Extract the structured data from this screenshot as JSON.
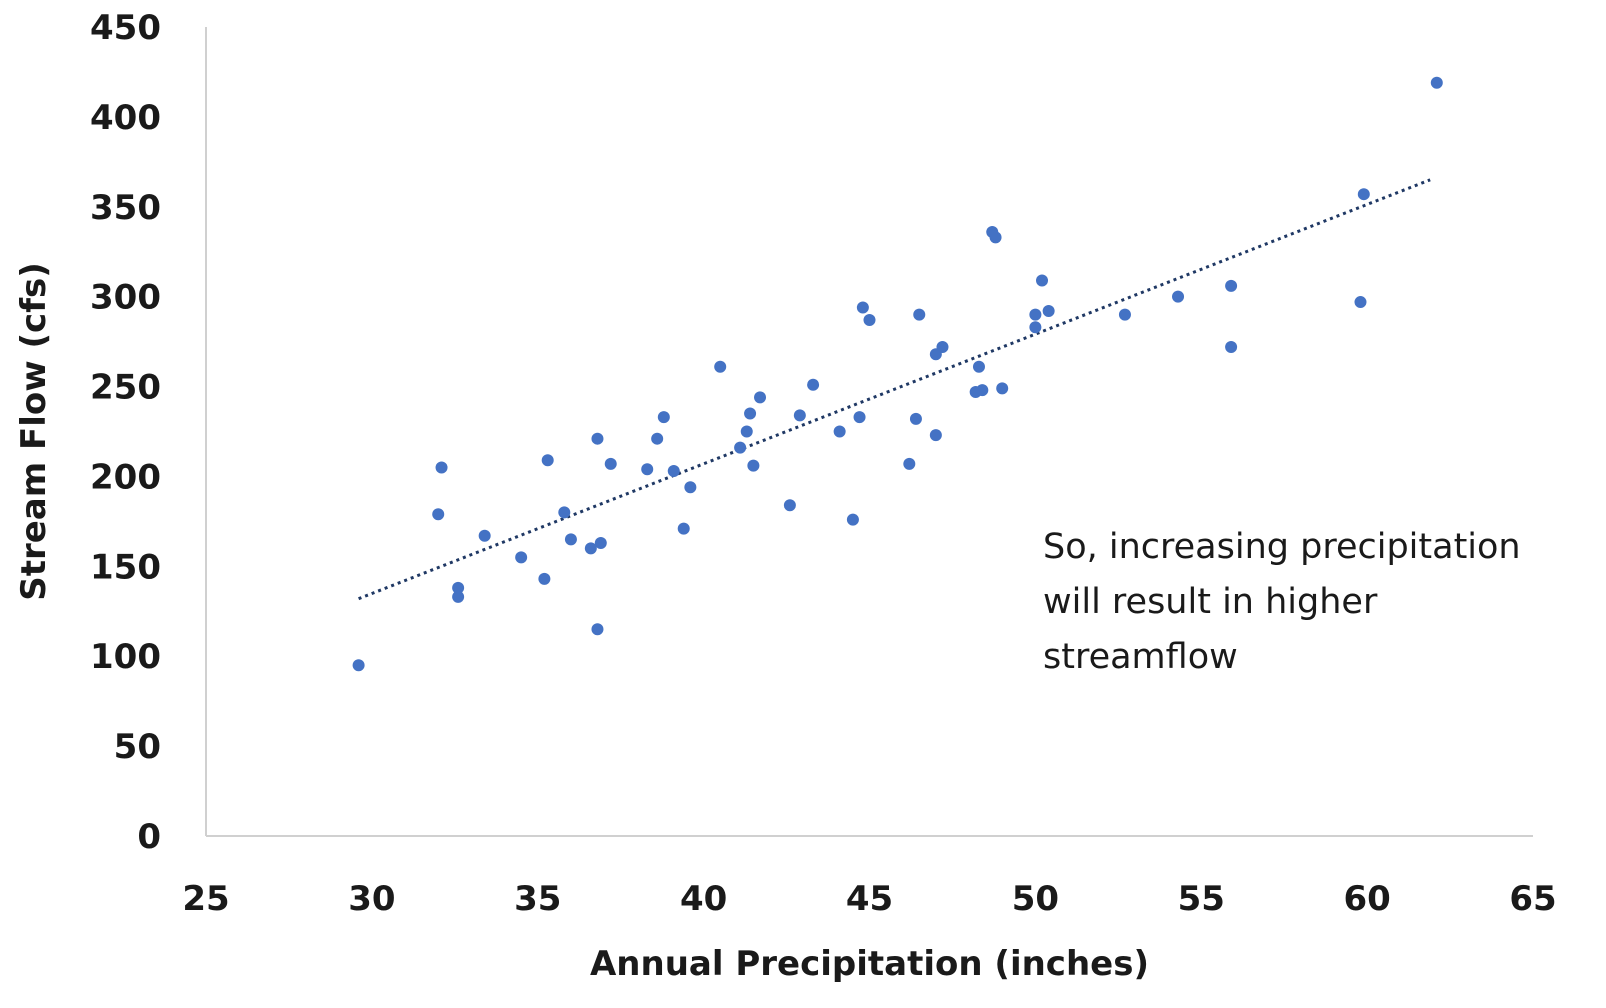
{
  "chart_data": {
    "type": "scatter",
    "title": "",
    "xlabel": "Annual Precipitation (inches)",
    "ylabel": "Stream Flow (cfs)",
    "xlim": [
      25,
      65
    ],
    "ylim": [
      0,
      450
    ],
    "x_ticks": [
      25,
      30,
      35,
      40,
      45,
      50,
      55,
      60,
      65
    ],
    "y_ticks": [
      0,
      50,
      100,
      150,
      200,
      250,
      300,
      350,
      400,
      450
    ],
    "grid": false,
    "legend": "none",
    "point_color": "#4472c4",
    "trendline_color": "#1f3864",
    "series": [
      {
        "x": [
          29.6,
          32.1,
          32.0,
          32.6,
          32.6,
          33.4,
          34.5,
          35.2,
          35.3,
          35.8,
          36.0,
          36.6,
          36.8,
          36.9,
          36.8,
          37.2,
          38.3,
          38.6,
          38.8,
          39.1,
          39.4,
          39.6,
          40.5,
          41.1,
          41.3,
          41.4,
          41.5,
          41.7,
          42.6,
          42.9,
          43.3,
          44.1,
          44.5,
          44.7,
          44.8,
          45.0,
          46.2,
          46.4,
          46.5,
          47.0,
          47.0,
          47.2,
          48.2,
          48.3,
          48.4,
          48.7,
          48.8,
          49.0,
          50.0,
          50.0,
          50.2,
          50.4,
          52.7,
          54.3,
          55.9,
          55.9,
          59.8,
          59.9,
          62.1
        ],
        "y": [
          95,
          205,
          179,
          138,
          133,
          167,
          155,
          143,
          209,
          180,
          165,
          160,
          221,
          163,
          115,
          207,
          204,
          221,
          233,
          203,
          171,
          194,
          261,
          216,
          225,
          235,
          206,
          244,
          184,
          234,
          251,
          225,
          176,
          233,
          294,
          287,
          207,
          232,
          290,
          223,
          268,
          272,
          247,
          261,
          248,
          336,
          333,
          249,
          290,
          283,
          309,
          292,
          290,
          300,
          306,
          272,
          297,
          357,
          419
        ]
      }
    ],
    "trendline": {
      "type": "linear",
      "x": [
        29.6,
        61.9
      ],
      "y": [
        132,
        365
      ]
    },
    "annotation": {
      "lines": [
        "So, increasing precipitation",
        "will result in higher",
        "streamflow"
      ]
    }
  }
}
